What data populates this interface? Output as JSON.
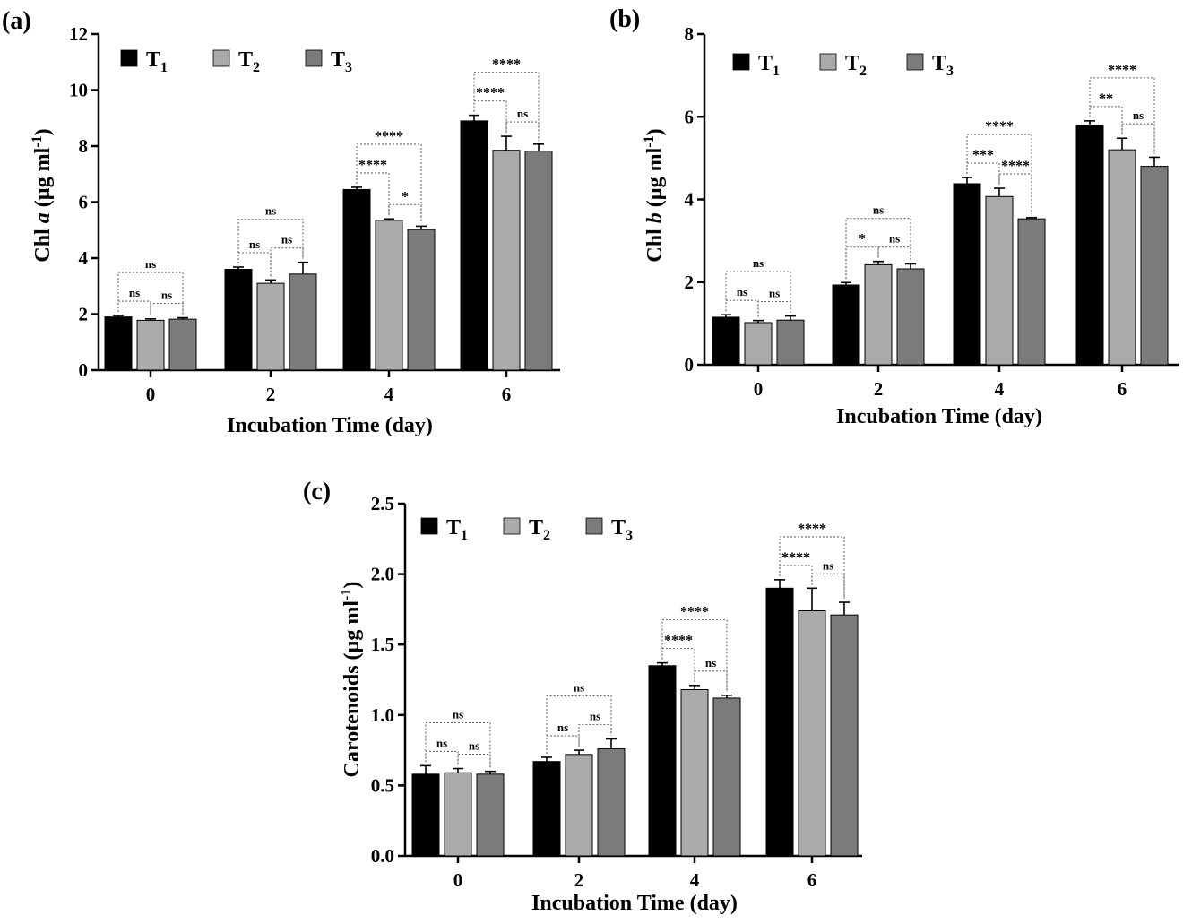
{
  "colors": {
    "T1": "#000000",
    "T2": "#aaaaaa",
    "T3": "#7b7b7b",
    "axis": "#000000",
    "bracket": "#6a6a6a"
  },
  "chart_data": [
    {
      "panel": "(a)",
      "type": "bar",
      "title": "",
      "xlabel": "Incubation Time (day)",
      "ylabel_parts": [
        "Chl ",
        "a",
        " (µg ml",
        "-1",
        ")"
      ],
      "categories": [
        "0",
        "2",
        "4",
        "6"
      ],
      "ylim": [
        0,
        12
      ],
      "yticks": [
        "0",
        "2",
        "4",
        "6",
        "8",
        "10",
        "12"
      ],
      "ytick_values": [
        0,
        2,
        4,
        6,
        8,
        10,
        12
      ],
      "grid": false,
      "legend_placement": "top-left",
      "series": [
        {
          "name": "T1",
          "label": "T",
          "sub": "1",
          "values": [
            1.9,
            3.6,
            6.45,
            8.9
          ],
          "errors": [
            0.05,
            0.08,
            0.08,
            0.2
          ]
        },
        {
          "name": "T2",
          "label": "T",
          "sub": "2",
          "values": [
            1.78,
            3.1,
            5.35,
            7.85
          ],
          "errors": [
            0.05,
            0.12,
            0.05,
            0.5
          ]
        },
        {
          "name": "T3",
          "label": "T",
          "sub": "3",
          "values": [
            1.82,
            3.43,
            5.02,
            7.82
          ],
          "errors": [
            0.05,
            0.42,
            0.12,
            0.25
          ]
        }
      ],
      "significance": [
        [
          {
            "label": "ns"
          },
          {
            "label": "ns"
          },
          {
            "label": "ns"
          }
        ],
        [
          {
            "label": "ns"
          },
          {
            "label": "ns"
          },
          {
            "label": "ns"
          }
        ],
        [
          {
            "label": "****"
          },
          {
            "label": "*"
          },
          {
            "label": "****"
          }
        ],
        [
          {
            "label": "****"
          },
          {
            "label": "ns"
          },
          {
            "label": "****"
          }
        ]
      ]
    },
    {
      "panel": "(b)",
      "type": "bar",
      "title": "",
      "xlabel": "Incubation Time (day)",
      "ylabel_parts": [
        "Chl ",
        "b",
        " (µg ml",
        "-1",
        ")"
      ],
      "categories": [
        "0",
        "2",
        "4",
        "6"
      ],
      "ylim": [
        0,
        8
      ],
      "yticks": [
        "0",
        "2",
        "4",
        "6",
        "8"
      ],
      "ytick_values": [
        0,
        2,
        4,
        6,
        8
      ],
      "grid": false,
      "legend_placement": "top-left",
      "series": [
        {
          "name": "T1",
          "label": "T",
          "sub": "1",
          "values": [
            1.15,
            1.93,
            4.38,
            5.8
          ],
          "errors": [
            0.06,
            0.06,
            0.15,
            0.1
          ]
        },
        {
          "name": "T2",
          "label": "T",
          "sub": "2",
          "values": [
            1.02,
            2.42,
            4.07,
            5.2
          ],
          "errors": [
            0.05,
            0.08,
            0.2,
            0.28
          ]
        },
        {
          "name": "T3",
          "label": "T",
          "sub": "3",
          "values": [
            1.08,
            2.32,
            3.53,
            4.8
          ],
          "errors": [
            0.1,
            0.12,
            0.03,
            0.22
          ]
        }
      ],
      "significance": [
        [
          {
            "label": "ns"
          },
          {
            "label": "ns"
          },
          {
            "label": "ns"
          }
        ],
        [
          {
            "label": "*"
          },
          {
            "label": "ns"
          },
          {
            "label": "ns"
          }
        ],
        [
          {
            "label": "***"
          },
          {
            "label": "****"
          },
          {
            "label": "****"
          }
        ],
        [
          {
            "label": "**"
          },
          {
            "label": "ns"
          },
          {
            "label": "****"
          }
        ]
      ]
    },
    {
      "panel": "(c)",
      "type": "bar",
      "title": "",
      "xlabel": "Incubation Time (day)",
      "ylabel_parts": [
        "Carotenoids (µg ml",
        "-1",
        ")"
      ],
      "categories": [
        "0",
        "2",
        "4",
        "6"
      ],
      "ylim": [
        0,
        2.5
      ],
      "yticks": [
        "0.0",
        "0.5",
        "1.0",
        "1.5",
        "2.0",
        "2.5"
      ],
      "ytick_values": [
        0,
        0.5,
        1.0,
        1.5,
        2.0,
        2.5
      ],
      "grid": false,
      "legend_placement": "top-left",
      "series": [
        {
          "name": "T1",
          "label": "T",
          "sub": "1",
          "values": [
            0.58,
            0.67,
            1.35,
            1.9
          ],
          "errors": [
            0.06,
            0.03,
            0.02,
            0.06
          ]
        },
        {
          "name": "T2",
          "label": "T",
          "sub": "2",
          "values": [
            0.59,
            0.72,
            1.18,
            1.74
          ],
          "errors": [
            0.03,
            0.03,
            0.03,
            0.16
          ]
        },
        {
          "name": "T3",
          "label": "T",
          "sub": "3",
          "values": [
            0.58,
            0.76,
            1.12,
            1.71
          ],
          "errors": [
            0.02,
            0.07,
            0.02,
            0.09
          ]
        }
      ],
      "significance": [
        [
          {
            "label": "ns"
          },
          {
            "label": "ns"
          },
          {
            "label": "ns"
          }
        ],
        [
          {
            "label": "ns"
          },
          {
            "label": "ns"
          },
          {
            "label": "ns"
          }
        ],
        [
          {
            "label": "****"
          },
          {
            "label": "ns"
          },
          {
            "label": "****"
          }
        ],
        [
          {
            "label": "****"
          },
          {
            "label": "ns"
          },
          {
            "label": "****"
          }
        ]
      ]
    }
  ]
}
